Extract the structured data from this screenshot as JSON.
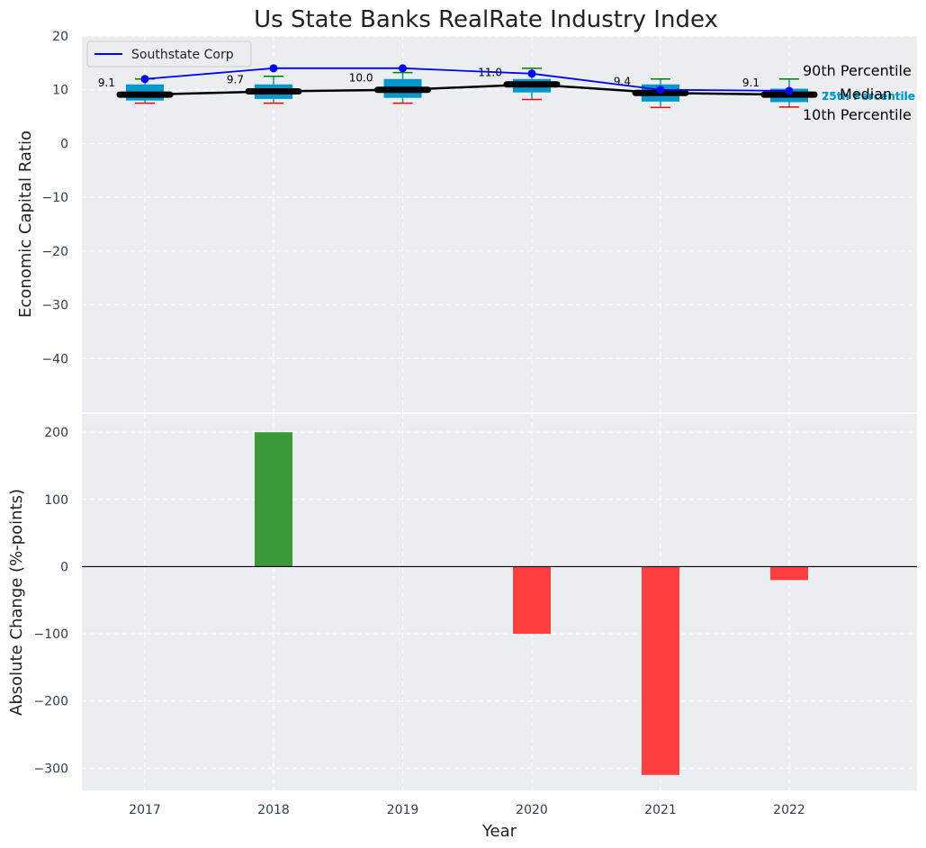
{
  "chart_data": [
    {
      "type": "box",
      "title": "Us State Banks RealRate Industry Index",
      "ylabel": "Economic Capital Ratio",
      "ylim": [
        -50,
        20
      ],
      "yticks": [
        20,
        10,
        0,
        -10,
        -20,
        -30,
        -40
      ],
      "ytick_labels": [
        "20",
        "10",
        "0",
        "−10",
        "−20",
        "−30",
        "−40"
      ],
      "categories": [
        "2017",
        "2018",
        "2019",
        "2020",
        "2021",
        "2022"
      ],
      "p10": [
        7.5,
        7.5,
        7.5,
        8.2,
        6.7,
        6.8
      ],
      "q1": [
        8.0,
        8.3,
        8.5,
        9.5,
        7.8,
        7.7
      ],
      "median": [
        9.1,
        9.7,
        10.0,
        11.0,
        9.4,
        9.1
      ],
      "q3": [
        11.0,
        11.0,
        12.0,
        12.0,
        11.0,
        10.2
      ],
      "p90": [
        12.0,
        12.5,
        13.2,
        14.0,
        12.0,
        12.0
      ],
      "median_labels": [
        "9.1",
        "9.7",
        "10.0",
        "11.0",
        "9.4",
        "9.1"
      ],
      "company": {
        "name": "Southstate Corp",
        "values": [
          12.0,
          14.0,
          14.0,
          13.0,
          10.0,
          9.8
        ]
      },
      "annotations": {
        "p90": "90th Percentile",
        "median": "Median",
        "p10": "10th Percentile",
        "q3": "75th Percentile",
        "q1": "25th Percentile"
      },
      "legend": {
        "entries": [
          "Southstate Corp"
        ],
        "placement": "top-left"
      },
      "colors": {
        "box": "#0099cc",
        "company": "#0000ff",
        "median": "#000000",
        "p90": "#008000",
        "p10": "#ff0000",
        "background": "#eaeef0",
        "grid": "#ffffff"
      }
    },
    {
      "type": "bar",
      "xlabel": "Year",
      "ylabel": "Absolute Change (%-points)",
      "ylim": [
        -333,
        227
      ],
      "yticks": [
        200,
        100,
        0,
        -100,
        -200,
        -300
      ],
      "ytick_labels": [
        "200",
        "100",
        "0",
        "−100",
        "−200",
        "−300"
      ],
      "categories": [
        "2017",
        "2018",
        "2019",
        "2020",
        "2021",
        "2022"
      ],
      "values": [
        0,
        200,
        0,
        -100,
        -310,
        -20
      ],
      "colors": {
        "positive": "#3a9a3a",
        "negative": "#ff3f3f"
      }
    }
  ]
}
